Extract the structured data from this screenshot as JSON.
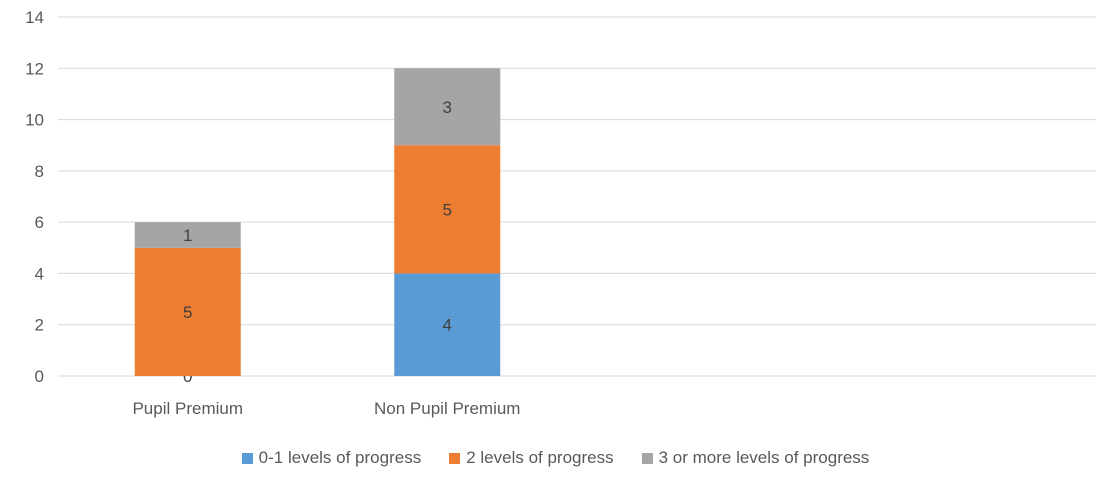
{
  "chart_data": {
    "type": "bar",
    "stacked": true,
    "categories": [
      "Pupil Premium",
      "Non Pupil Premium"
    ],
    "series": [
      {
        "name": "0-1 levels of progress",
        "values": [
          0,
          4
        ],
        "color": "#5B9BD5"
      },
      {
        "name": "2 levels of progress",
        "values": [
          5,
          5
        ],
        "color": "#ED7D31"
      },
      {
        "name": "3 or more levels of progress",
        "values": [
          1,
          3
        ],
        "color": "#A5A5A5"
      }
    ],
    "ylim": [
      0,
      14
    ],
    "yticks": [
      0,
      2,
      4,
      6,
      8,
      10,
      12,
      14
    ],
    "grid": true,
    "legend_position": "bottom",
    "data_labels": true
  }
}
